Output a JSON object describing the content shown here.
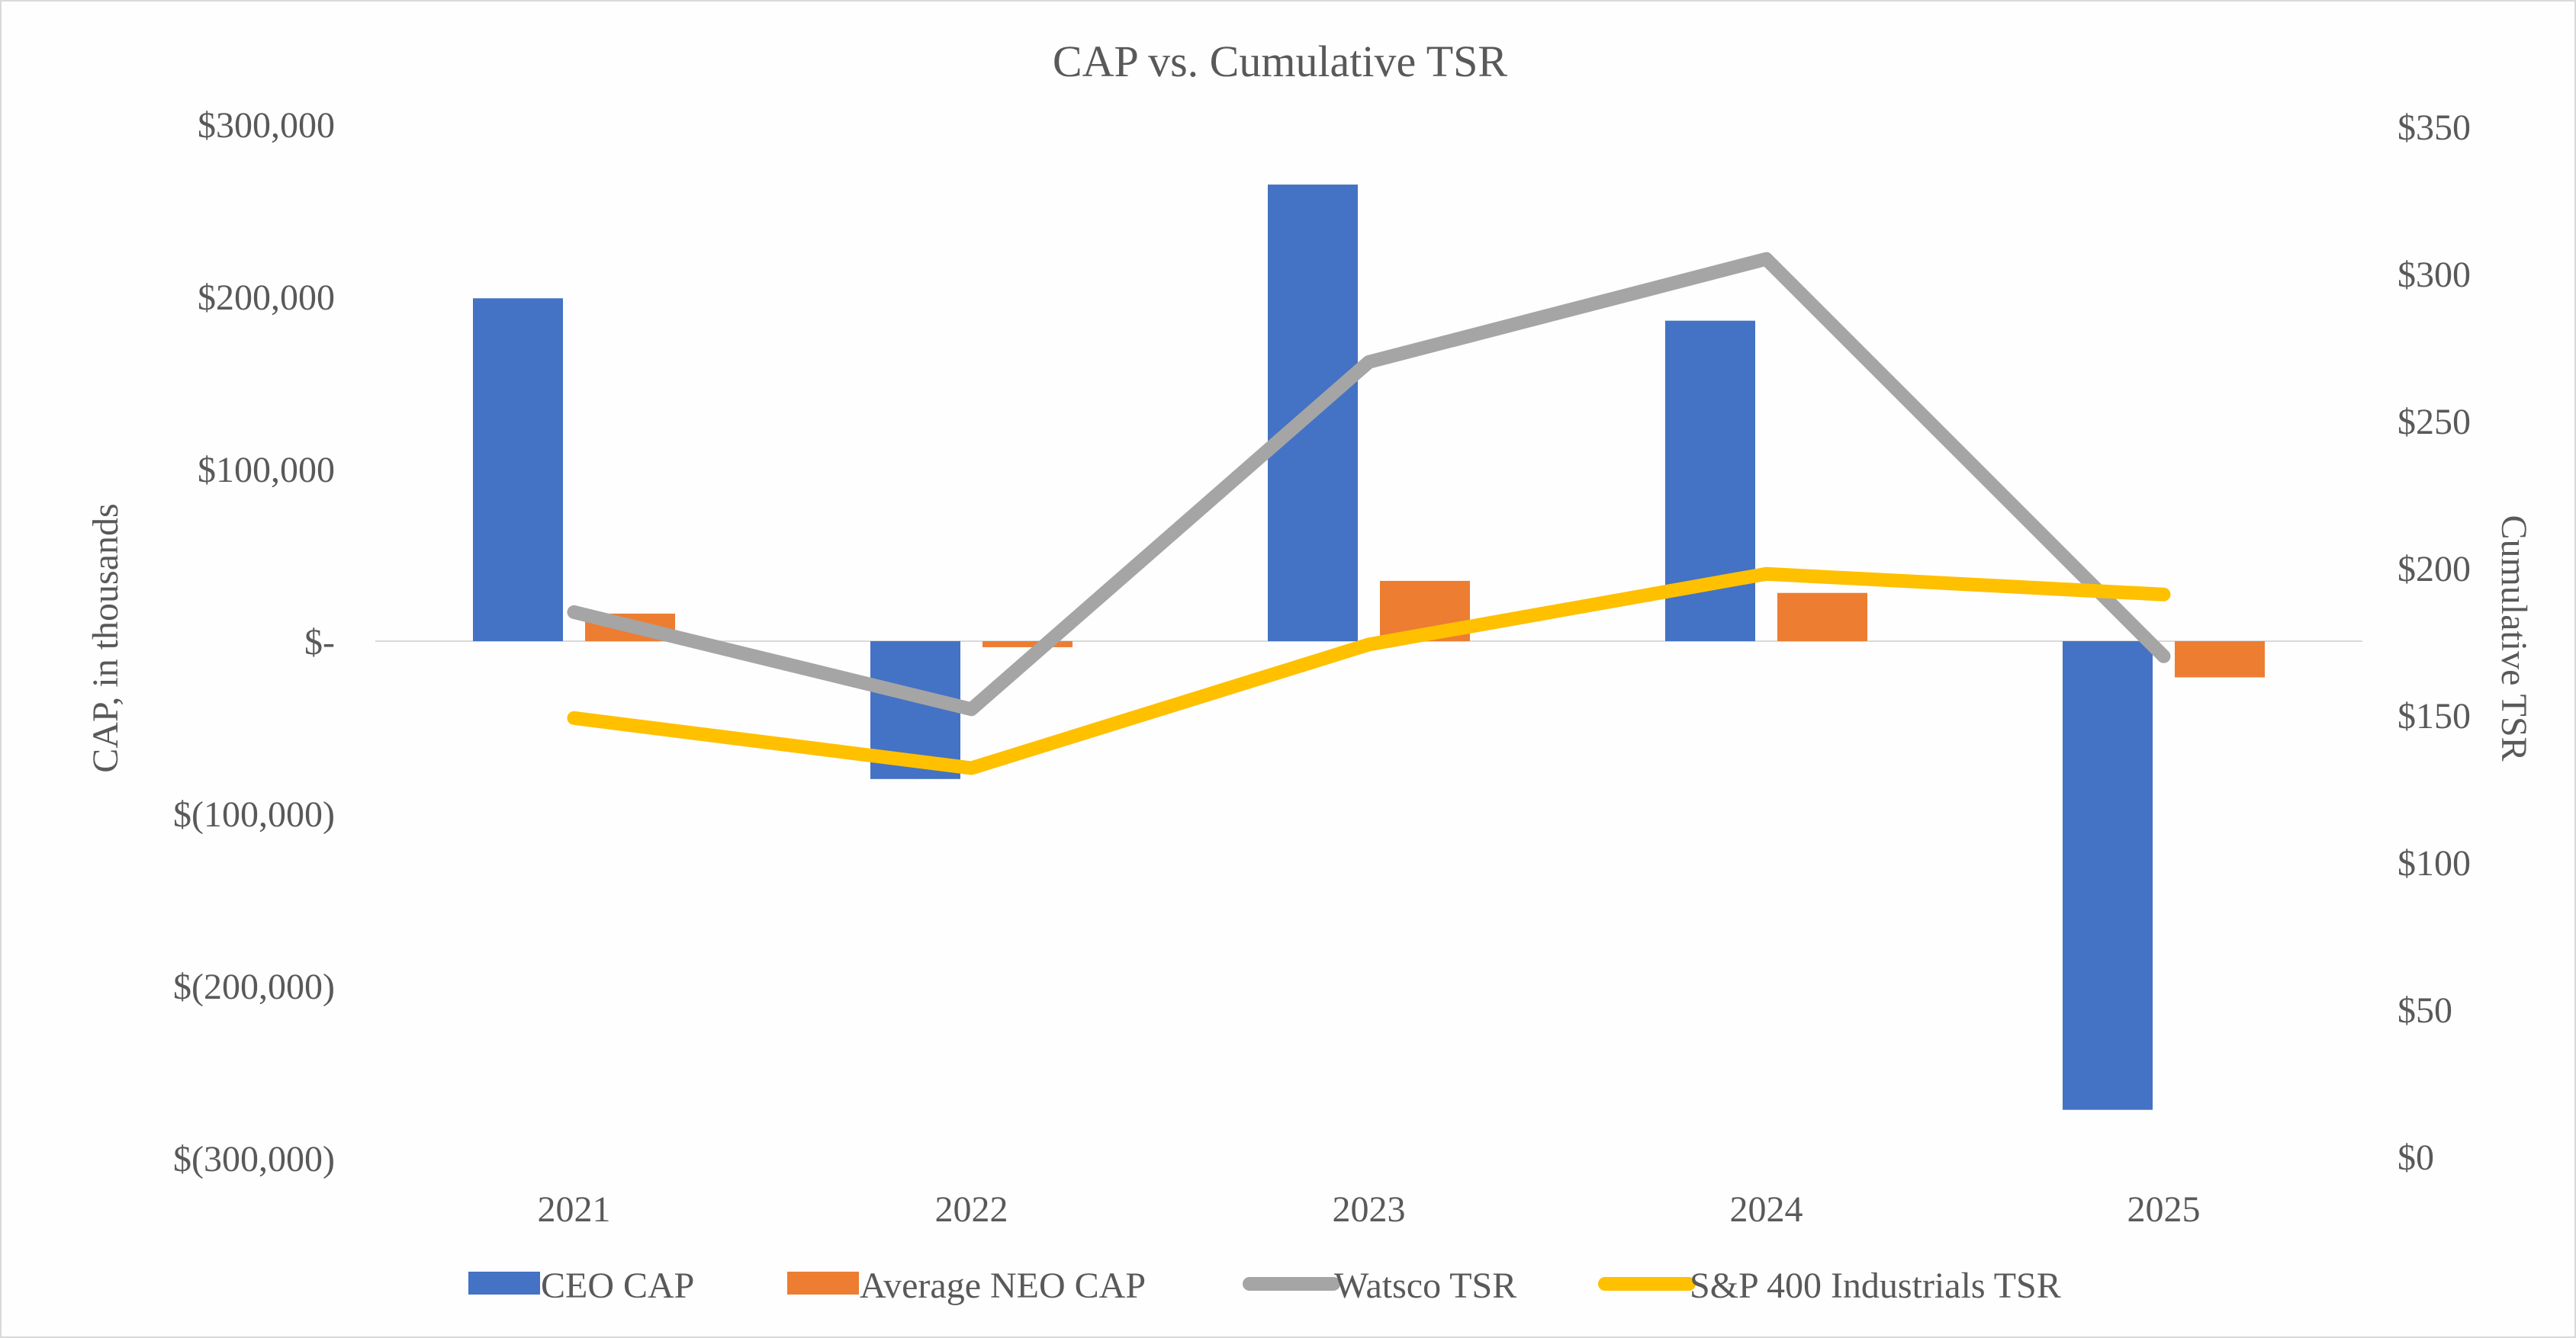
{
  "chart_data": {
    "type": "bar",
    "title": "CAP vs. Cumulative TSR",
    "categories": [
      "2021",
      "2022",
      "2023",
      "2024",
      "2025"
    ],
    "ylabel": "CAP, in thousands",
    "y2label": "Cumulative TSR",
    "ylim": [
      -300000,
      300000
    ],
    "y2lim": [
      0,
      350
    ],
    "y_ticks": [
      {
        "value": 300000,
        "label": "$300,000"
      },
      {
        "value": 200000,
        "label": "$200,000"
      },
      {
        "value": 100000,
        "label": "$100,000"
      },
      {
        "value": 0,
        "label": "$-"
      },
      {
        "value": -100000,
        "label": "$(100,000)"
      },
      {
        "value": -200000,
        "label": "$(200,000)"
      },
      {
        "value": -300000,
        "label": "$(300,000)"
      }
    ],
    "y2_ticks": [
      {
        "value": 350,
        "label": "$350"
      },
      {
        "value": 300,
        "label": "$300"
      },
      {
        "value": 250,
        "label": "$250"
      },
      {
        "value": 200,
        "label": "$200"
      },
      {
        "value": 150,
        "label": "$150"
      },
      {
        "value": 100,
        "label": "$100"
      },
      {
        "value": 50,
        "label": "$50"
      },
      {
        "value": 0,
        "label": "$0"
      }
    ],
    "series": [
      {
        "name": "CEO CAP",
        "kind": "bar",
        "axis": "left",
        "color": "#4472c4",
        "values": [
          199000,
          -80000,
          265000,
          186000,
          -272000
        ]
      },
      {
        "name": "Average NEO CAP",
        "kind": "bar",
        "axis": "left",
        "color": "#ed7d31",
        "values": [
          16000,
          -3500,
          35000,
          28000,
          -21000
        ]
      },
      {
        "name": "Watsco TSR",
        "kind": "line",
        "axis": "right",
        "color": "#a5a5a5",
        "values": [
          185,
          152,
          270,
          305,
          170
        ]
      },
      {
        "name": "S&P 400 Industrials TSR",
        "kind": "line",
        "axis": "right",
        "color": "#ffc000",
        "values": [
          149,
          132,
          174,
          198,
          191
        ]
      }
    ],
    "legend_position": "bottom",
    "grid": false
  }
}
